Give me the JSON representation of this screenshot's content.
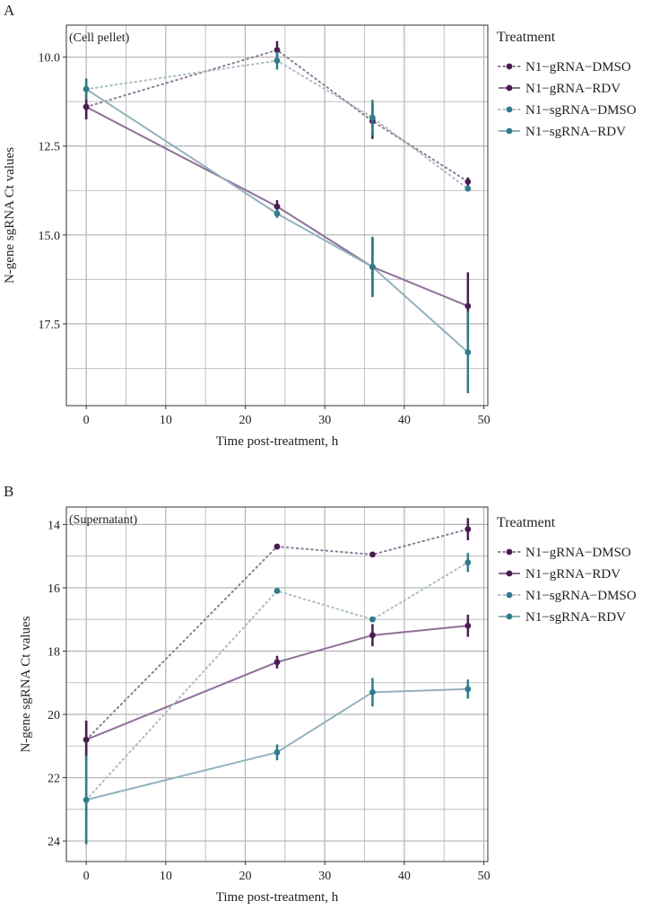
{
  "legend": {
    "title": "Treatment",
    "entries": [
      "N1−gRNA−DMSO",
      "N1−gRNA−RDV",
      "N1−sgRNA−DMSO",
      "N1−sgRNA−RDV"
    ]
  },
  "colors": {
    "gRNA_marker": "#4a1d50",
    "gRNA_dmso_line": "#8c7a96",
    "gRNA_rdv_line": "#8f6e98",
    "sgRNA_marker": "#2e7d8a",
    "sgRNA_dmso_line": "#a9bcc4",
    "sgRNA_rdv_line": "#93b1be",
    "grid": "#b3b3b3",
    "frame": "#333333"
  },
  "chart_data": [
    {
      "panel": "A",
      "type": "line",
      "annotation": "(Cell pellet)",
      "xlabel": "Time post-treatment, h",
      "ylabel": "N-gene sgRNA Ct values",
      "xlim": [
        -2.5,
        50.5
      ],
      "ylim": [
        19.8,
        9.1
      ],
      "y_reversed": true,
      "x_ticks": [
        0,
        10,
        20,
        30,
        40,
        50
      ],
      "x_tick_labels": [
        "0",
        "10",
        "20",
        "30",
        "40",
        "50"
      ],
      "y_ticks": [
        10.0,
        12.5,
        15.0,
        17.5
      ],
      "y_tick_labels": [
        "10.0",
        "12.5",
        "15.0",
        "17.5"
      ],
      "series": [
        {
          "name": "N1−gRNA−DMSO",
          "style": "dotted",
          "x": [
            0,
            24,
            36,
            48
          ],
          "y": [
            11.4,
            9.8,
            11.8,
            13.5
          ],
          "err": [
            0.35,
            0.25,
            0.5,
            0.12
          ]
        },
        {
          "name": "N1−gRNA−RDV",
          "style": "solid",
          "x": [
            0,
            24,
            36,
            48
          ],
          "y": [
            11.4,
            14.2,
            15.9,
            17.0
          ],
          "err": [
            0.35,
            0.18,
            0.8,
            0.95
          ]
        },
        {
          "name": "N1−sgRNA−DMSO",
          "style": "dotted",
          "x": [
            0,
            24,
            36,
            48
          ],
          "y": [
            10.9,
            10.1,
            11.7,
            13.7
          ],
          "err": [
            0.3,
            0.25,
            0.5,
            0.05
          ]
        },
        {
          "name": "N1−sgRNA−RDV",
          "style": "solid",
          "x": [
            0,
            24,
            36,
            48
          ],
          "y": [
            10.9,
            14.4,
            15.9,
            18.3
          ],
          "err": [
            0.3,
            0.12,
            0.85,
            1.15
          ]
        }
      ]
    },
    {
      "panel": "B",
      "type": "line",
      "annotation": "(Supernatant)",
      "xlabel": "Time post-treatment, h",
      "ylabel": "N-gene sgRNA Ct values",
      "xlim": [
        -2.5,
        50.5
      ],
      "ylim": [
        24.65,
        13.45
      ],
      "y_reversed": true,
      "x_ticks": [
        0,
        10,
        20,
        30,
        40,
        50
      ],
      "x_tick_labels": [
        "0",
        "10",
        "20",
        "30",
        "40",
        "50"
      ],
      "y_ticks": [
        14,
        16,
        18,
        20,
        22,
        24
      ],
      "y_tick_labels": [
        "14",
        "16",
        "18",
        "20",
        "22",
        "24"
      ],
      "series": [
        {
          "name": "N1−gRNA−DMSO",
          "style": "dotted",
          "x": [
            0,
            24,
            36,
            48
          ],
          "y": [
            20.8,
            14.7,
            14.95,
            14.15
          ],
          "err": [
            0.6,
            0.08,
            0.08,
            0.35
          ]
        },
        {
          "name": "N1−gRNA−RDV",
          "style": "solid",
          "x": [
            0,
            24,
            36,
            48
          ],
          "y": [
            20.8,
            18.35,
            17.5,
            17.2
          ],
          "err": [
            0.6,
            0.2,
            0.35,
            0.35
          ]
        },
        {
          "name": "N1−sgRNA−DMSO",
          "style": "dotted",
          "x": [
            0,
            24,
            36,
            48
          ],
          "y": [
            22.7,
            16.1,
            17.0,
            15.2
          ],
          "err": [
            1.4,
            0.05,
            0.05,
            0.3
          ]
        },
        {
          "name": "N1−sgRNA−RDV",
          "style": "solid",
          "x": [
            0,
            24,
            36,
            48
          ],
          "y": [
            22.7,
            21.2,
            19.3,
            19.2
          ],
          "err": [
            1.4,
            0.25,
            0.45,
            0.3
          ]
        }
      ]
    }
  ]
}
